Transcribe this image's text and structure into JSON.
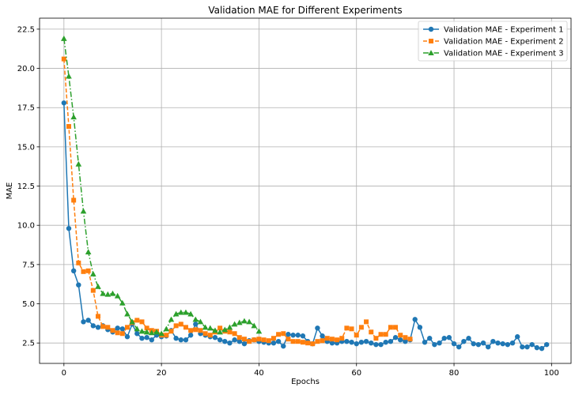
{
  "chart_data": {
    "type": "line",
    "title": "Validation MAE for Different Experiments",
    "xlabel": "Epochs",
    "ylabel": "MAE",
    "xlim": [
      -5,
      104
    ],
    "ylim": [
      1.2,
      23.2
    ],
    "xticks": [
      0,
      20,
      40,
      60,
      80,
      100
    ],
    "yticks": [
      2.5,
      5.0,
      7.5,
      10.0,
      12.5,
      15.0,
      17.5,
      20.0,
      22.5
    ],
    "xtick_labels": [
      "0",
      "20",
      "40",
      "60",
      "80",
      "100"
    ],
    "ytick_labels": [
      "2.5",
      "5.0",
      "7.5",
      "10.0",
      "12.5",
      "15.0",
      "17.5",
      "20.0",
      "22.5"
    ],
    "grid": true,
    "legend_position": "top-right",
    "series": [
      {
        "name": "Validation MAE - Experiment 1",
        "color": "#1f77b4",
        "marker": "circle",
        "linestyle": "solid",
        "values": [
          17.8,
          9.8,
          7.1,
          6.2,
          3.85,
          3.95,
          3.6,
          3.5,
          3.6,
          3.35,
          3.2,
          3.45,
          3.4,
          2.9,
          3.7,
          3.1,
          2.8,
          2.85,
          2.7,
          3.0,
          2.9,
          2.95,
          3.3,
          2.8,
          2.7,
          2.7,
          3.0,
          3.7,
          3.1,
          3.0,
          2.9,
          2.85,
          2.7,
          2.6,
          2.5,
          2.7,
          2.6,
          2.45,
          2.65,
          2.7,
          2.6,
          2.55,
          2.5,
          2.5,
          2.6,
          2.3,
          3.05,
          3.0,
          3.0,
          2.95,
          2.6,
          2.45,
          3.45,
          2.95,
          2.6,
          2.5,
          2.5,
          2.6,
          2.6,
          2.55,
          2.45,
          2.55,
          2.6,
          2.5,
          2.4,
          2.4,
          2.55,
          2.6,
          2.85,
          2.7,
          2.6,
          2.7,
          4.0,
          3.5,
          2.55,
          2.8,
          2.4,
          2.5,
          2.8,
          2.85,
          2.45,
          2.25,
          2.6,
          2.8,
          2.45,
          2.4,
          2.5,
          2.25,
          2.6,
          2.5,
          2.45,
          2.4,
          2.5,
          2.9,
          2.25,
          2.25,
          2.4,
          2.2,
          2.15,
          2.4
        ]
      },
      {
        "name": "Validation MAE - Experiment 2",
        "color": "#ff7f0e",
        "marker": "square",
        "linestyle": "dashed",
        "values": [
          20.6,
          16.3,
          11.6,
          7.6,
          7.05,
          7.1,
          5.85,
          4.2,
          3.55,
          3.5,
          3.3,
          3.15,
          3.1,
          3.5,
          3.8,
          3.95,
          3.85,
          3.45,
          3.3,
          3.25,
          3.0,
          3.0,
          3.25,
          3.6,
          3.7,
          3.5,
          3.3,
          3.35,
          3.3,
          3.1,
          3.0,
          3.2,
          3.45,
          3.25,
          3.2,
          3.1,
          2.85,
          2.75,
          2.6,
          2.7,
          2.75,
          2.7,
          2.65,
          2.8,
          3.05,
          3.1,
          2.75,
          2.6,
          2.6,
          2.55,
          2.5,
          2.45,
          2.6,
          2.65,
          2.8,
          2.75,
          2.7,
          2.8,
          3.45,
          3.4,
          3.0,
          3.5,
          3.85,
          3.2,
          2.8,
          3.05,
          3.05,
          3.5,
          3.5,
          3.0,
          2.85,
          2.75
        ]
      },
      {
        "name": "Validation MAE - Experiment 3",
        "color": "#2ca02c",
        "marker": "triangle",
        "linestyle": "dashdot",
        "values": [
          21.9,
          19.5,
          16.9,
          13.9,
          10.9,
          8.3,
          6.9,
          6.1,
          5.65,
          5.6,
          5.65,
          5.5,
          5.05,
          4.35,
          3.85,
          3.4,
          3.25,
          3.2,
          3.15,
          3.2,
          3.1,
          3.4,
          4.0,
          4.35,
          4.45,
          4.45,
          4.35,
          4.0,
          3.85,
          3.5,
          3.45,
          3.3,
          3.2,
          3.35,
          3.5,
          3.7,
          3.8,
          3.9,
          3.85,
          3.6,
          3.25
        ]
      }
    ]
  }
}
